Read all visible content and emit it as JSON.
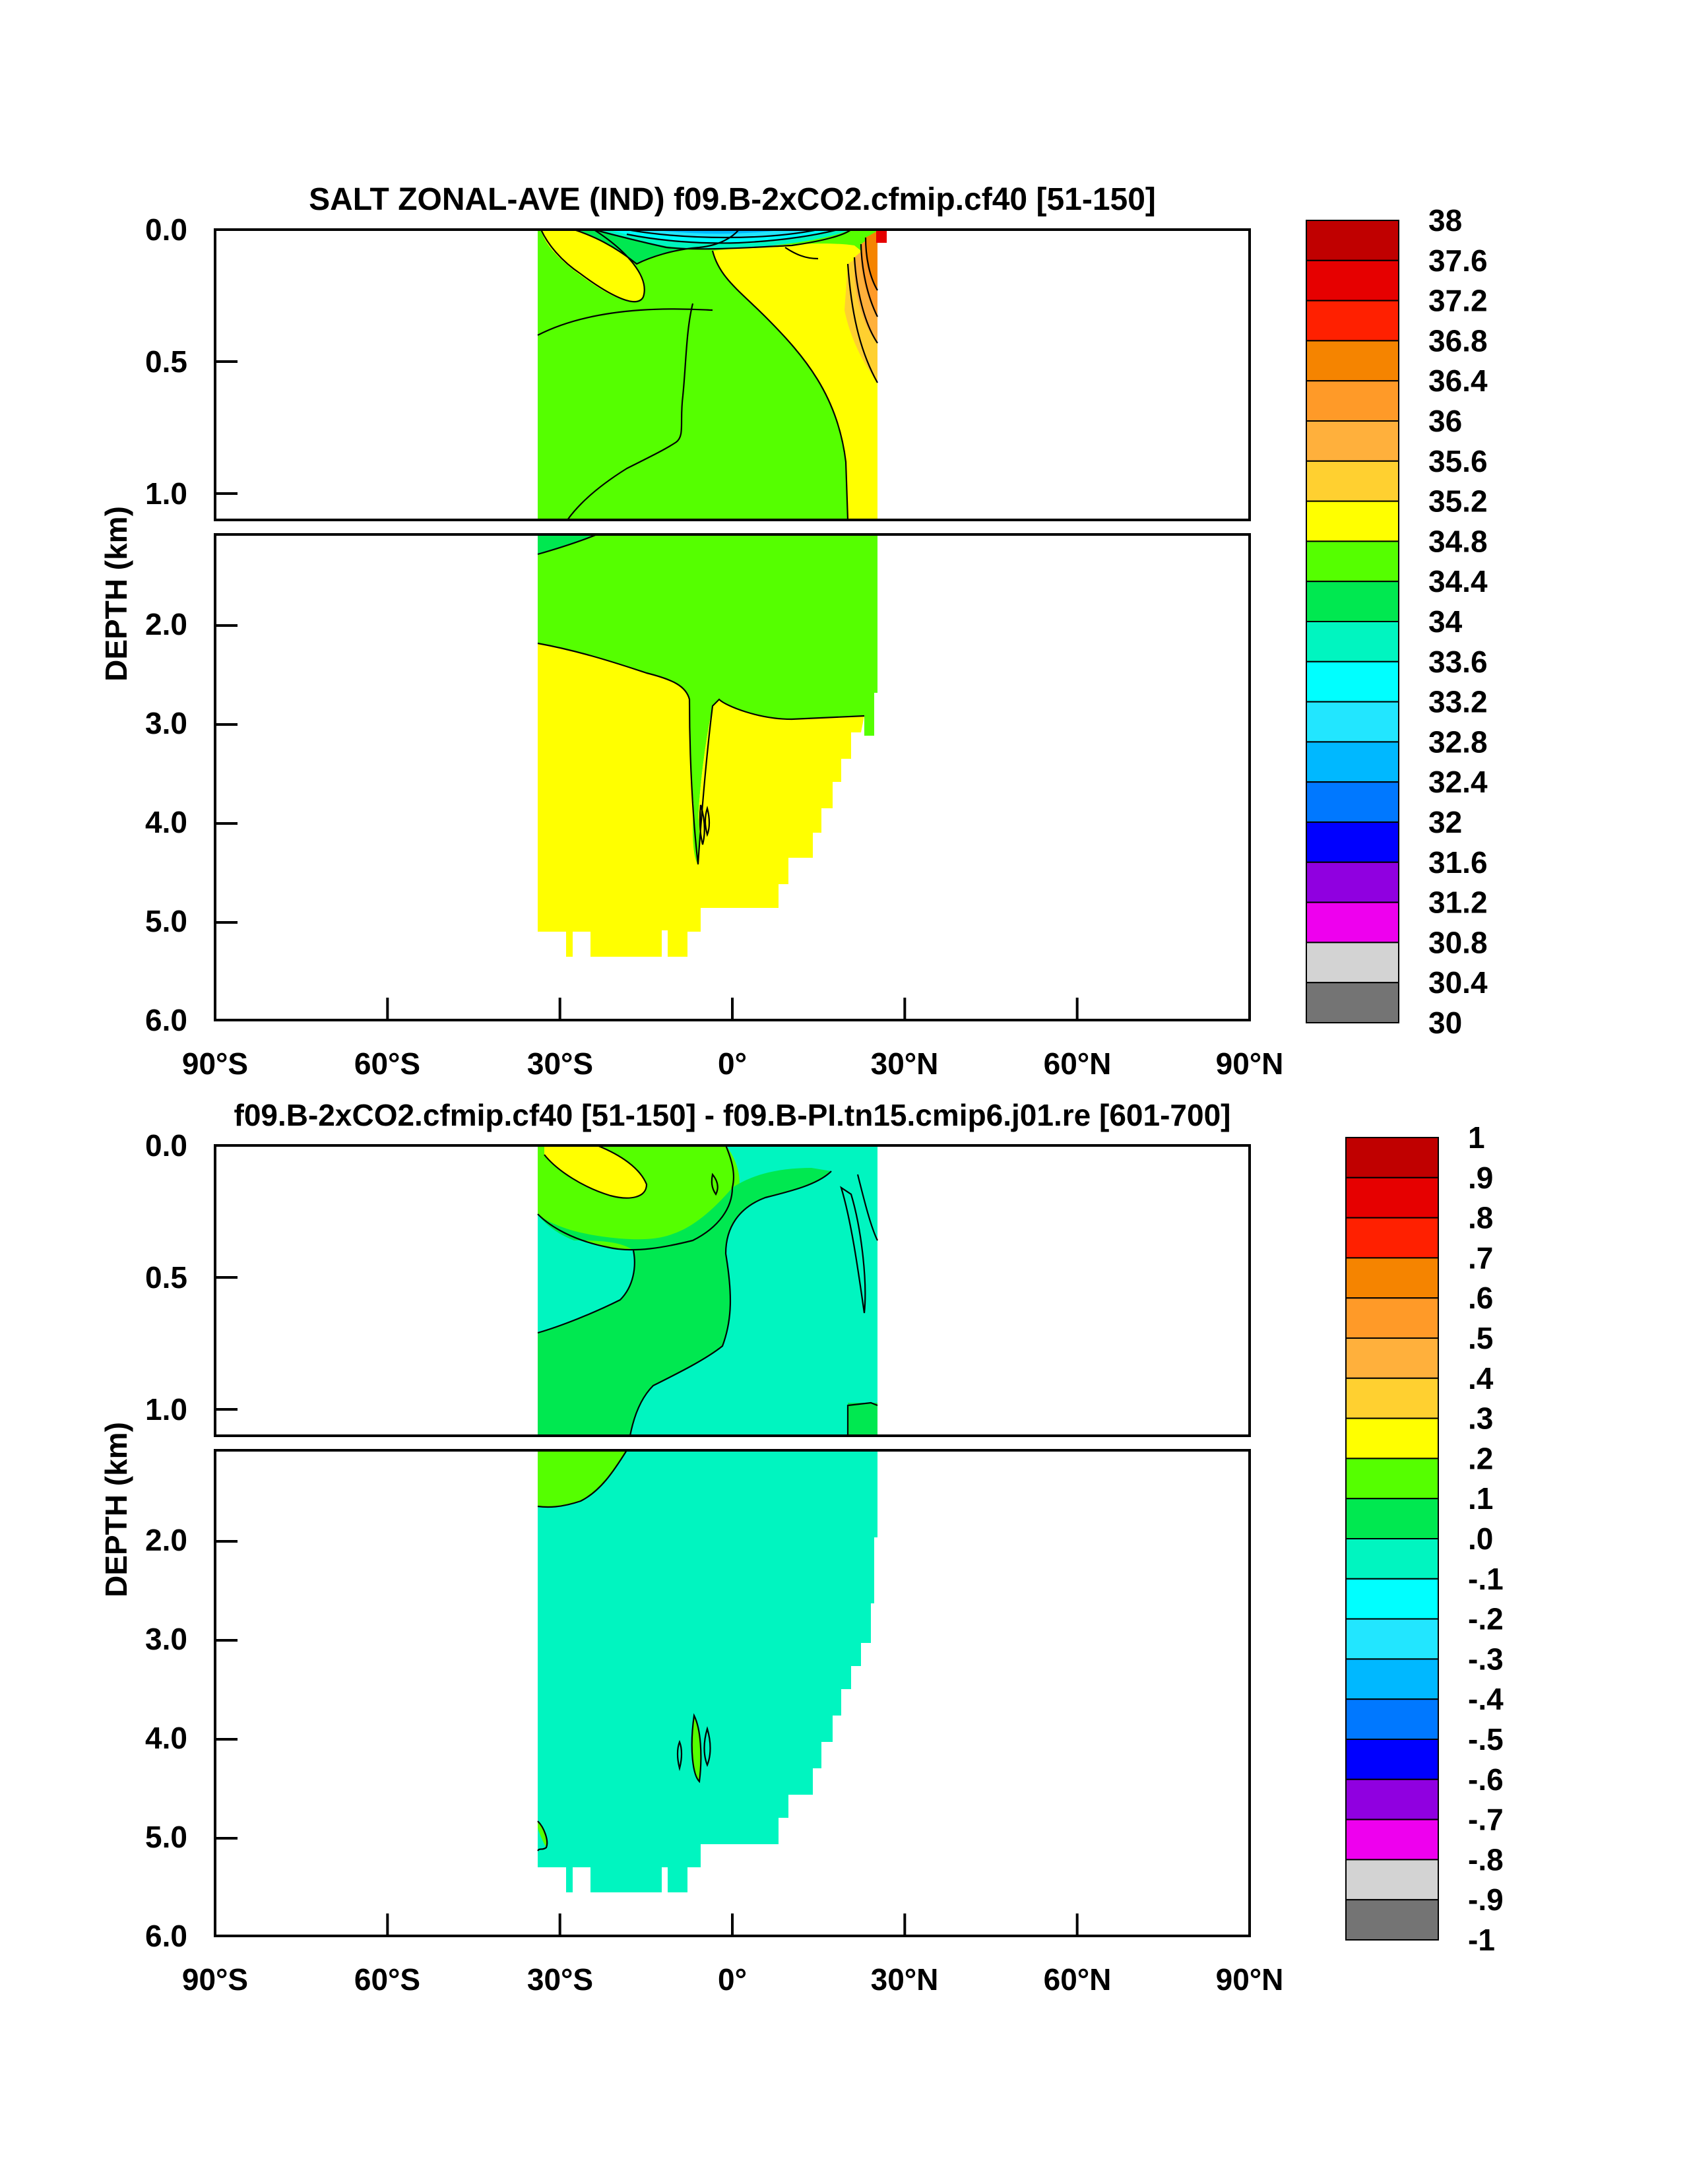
{
  "chart_data": [
    {
      "type": "contour",
      "title": "SALT ZONAL-AVE (IND) f09.B-2xCO2.cfmip.cf40 [51-150]",
      "ylabel": "DEPTH (km)",
      "xlim": [
        -90,
        90
      ],
      "ylim": [
        0,
        6
      ],
      "x_ticks": [
        "90°S",
        "60°S",
        "30°S",
        "0°",
        "30°N",
        "60°N",
        "90°N"
      ],
      "y_ticks_top": [
        "0.0",
        "0.5",
        "1.0"
      ],
      "y_ticks_bottom": [
        "2.0",
        "3.0",
        "4.0",
        "5.0",
        "6.0"
      ],
      "colorbar": {
        "levels": [
          "38",
          "37.6",
          "37.2",
          "36.8",
          "36.4",
          "36",
          "35.6",
          "35.2",
          "34.8",
          "34.4",
          "34",
          "33.6",
          "33.2",
          "32.8",
          "32.4",
          "32",
          "31.6",
          "31.2",
          "30.8",
          "30.4",
          "30"
        ],
        "colors": [
          "#c00000",
          "#e60000",
          "#ff2000",
          "#f58400",
          "#ff9a28",
          "#ffb03c",
          "#ffd030",
          "#ffff00",
          "#55ff00",
          "#00e850",
          "#00f5c0",
          "#00ffff",
          "#22e6ff",
          "#00b8ff",
          "#0078ff",
          "#0000ff",
          "#9000e0",
          "#ee00ee",
          "#d3d3d3",
          "#747474"
        ]
      }
    },
    {
      "type": "contour",
      "title": "f09.B-2xCO2.cfmip.cf40 [51-150] - f09.B-PI.tn15.cmip6.j01.re [601-700]",
      "ylabel": "DEPTH (km)",
      "xlim": [
        -90,
        90
      ],
      "ylim": [
        0,
        6
      ],
      "x_ticks": [
        "90°S",
        "60°S",
        "30°S",
        "0°",
        "30°N",
        "60°N",
        "90°N"
      ],
      "y_ticks_top": [
        "0.0",
        "0.5",
        "1.0"
      ],
      "y_ticks_bottom": [
        "2.0",
        "3.0",
        "4.0",
        "5.0",
        "6.0"
      ],
      "colorbar": {
        "levels": [
          "1",
          ".9",
          ".8",
          ".7",
          ".6",
          ".5",
          ".4",
          ".3",
          ".2",
          ".1",
          ".0",
          "-.1",
          "-.2",
          "-.3",
          "-.4",
          "-.5",
          "-.6",
          "-.7",
          "-.8",
          "-.9",
          "-1"
        ],
        "colors": [
          "#c00000",
          "#e60000",
          "#ff2000",
          "#f58400",
          "#ff9a28",
          "#ffb03c",
          "#ffd030",
          "#ffff00",
          "#55ff00",
          "#00e850",
          "#00f5c0",
          "#00ffff",
          "#22e6ff",
          "#00b8ff",
          "#0078ff",
          "#0000ff",
          "#9000e0",
          "#ee00ee",
          "#d3d3d3",
          "#747474"
        ]
      }
    }
  ]
}
